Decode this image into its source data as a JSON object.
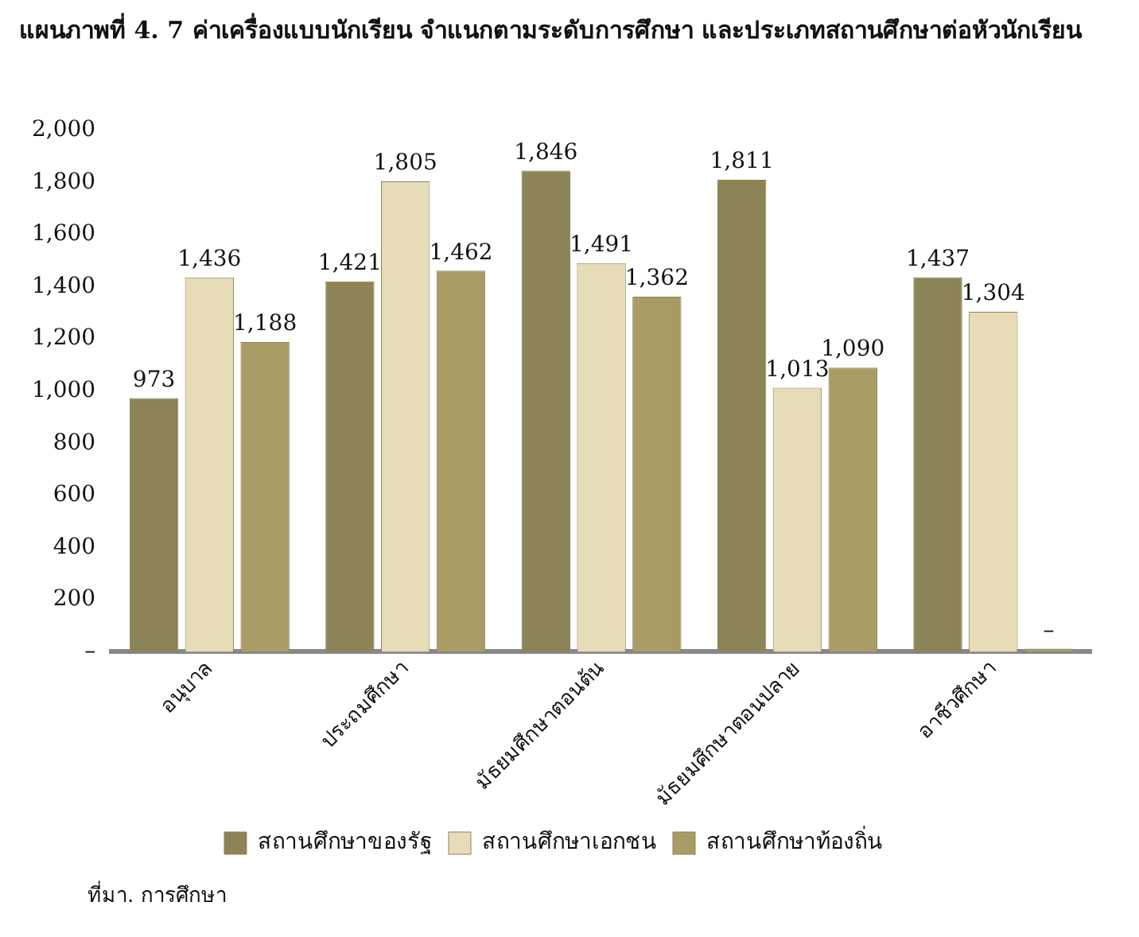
{
  "chart_data": {
    "type": "bar",
    "title": "แผนภาพที่ 4. 7 ค่าเครื่องแบบนักเรียน จำแนกตามระดับการศึกษา และประเภทสถานศึกษาต่อหัวนักเรียน",
    "categories": [
      "อนุบาล",
      "ประถมศึกษา",
      "มัธยมศึกษาตอนต้น",
      "มัธยมศึกษาตอนปลาย",
      "อาชีวศึกษา"
    ],
    "series": [
      {
        "name": "สถานศึกษาของรัฐ",
        "color": "#8c8456",
        "values": [
          973,
          1421,
          1846,
          1811,
          1437
        ],
        "value_labels": [
          "973",
          "1,421",
          "1,846",
          "1,811",
          "1,437"
        ]
      },
      {
        "name": "สถานศึกษาเอกชน",
        "color": "#e6dcb8",
        "values": [
          1436,
          1805,
          1491,
          1013,
          1304
        ],
        "value_labels": [
          "1,436",
          "1,805",
          "1,491",
          "1,013",
          "1,304"
        ]
      },
      {
        "name": "สถานศึกษาท้องถิ่น",
        "color": "#a99b64",
        "values": [
          1188,
          1462,
          1362,
          1090,
          0
        ],
        "value_labels": [
          "1,188",
          "1,462",
          "1,362",
          "1,090",
          "–"
        ]
      }
    ],
    "ylim": [
      0,
      2000
    ],
    "yticks": [
      {
        "value": 0,
        "label": "–"
      },
      {
        "value": 200,
        "label": "200"
      },
      {
        "value": 400,
        "label": "400"
      },
      {
        "value": 600,
        "label": "600"
      },
      {
        "value": 800,
        "label": "800"
      },
      {
        "value": 1000,
        "label": "1,000"
      },
      {
        "value": 1200,
        "label": "1,200"
      },
      {
        "value": 1400,
        "label": "1,400"
      },
      {
        "value": 1600,
        "label": "1,600"
      },
      {
        "value": 1800,
        "label": "1,800"
      },
      {
        "value": 2000,
        "label": "2,000"
      }
    ],
    "grid": false,
    "legend": "bottom",
    "annotations": [
      "ที่มา. การศึกษา"
    ]
  }
}
